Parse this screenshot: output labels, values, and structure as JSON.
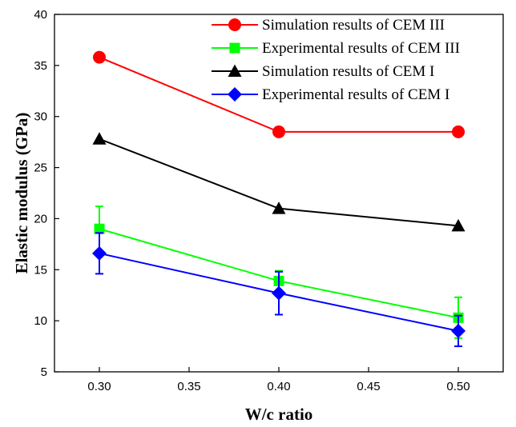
{
  "chart_data": {
    "type": "line",
    "title": "",
    "xlabel": "W/c ratio",
    "ylabel": "Elastic modulus (GPa)",
    "xlim": [
      0.275,
      0.525
    ],
    "ylim": [
      5,
      40
    ],
    "x_ticks": [
      "0.30",
      "0.35",
      "0.40",
      "0.45",
      "0.50"
    ],
    "y_ticks": [
      "5",
      "10",
      "15",
      "20",
      "25",
      "30",
      "35",
      "40"
    ],
    "x_tick_values": [
      0.3,
      0.35,
      0.4,
      0.45,
      0.5
    ],
    "y_tick_values": [
      5,
      10,
      15,
      20,
      25,
      30,
      35,
      40
    ],
    "grid": false,
    "legend_position": "top-right",
    "x": [
      0.3,
      0.4,
      0.5
    ],
    "series": [
      {
        "name": "Simulation results of CEM III",
        "values": [
          35.8,
          28.5,
          28.5
        ],
        "color": "#ff0000",
        "marker": "circle",
        "error": null
      },
      {
        "name": "Experimental results of CEM III",
        "values": [
          19.0,
          13.9,
          10.3
        ],
        "color": "#00ff00",
        "marker": "square",
        "error": [
          2.2,
          1.0,
          2.0
        ]
      },
      {
        "name": "Simulation results of CEM I",
        "values": [
          27.8,
          21.0,
          19.3
        ],
        "color": "#000000",
        "marker": "triangle",
        "error": null
      },
      {
        "name": "Experimental results of CEM I",
        "values": [
          16.6,
          12.7,
          9.0
        ],
        "color": "#0000ff",
        "marker": "diamond",
        "error": [
          2.0,
          2.1,
          1.5
        ]
      }
    ]
  }
}
